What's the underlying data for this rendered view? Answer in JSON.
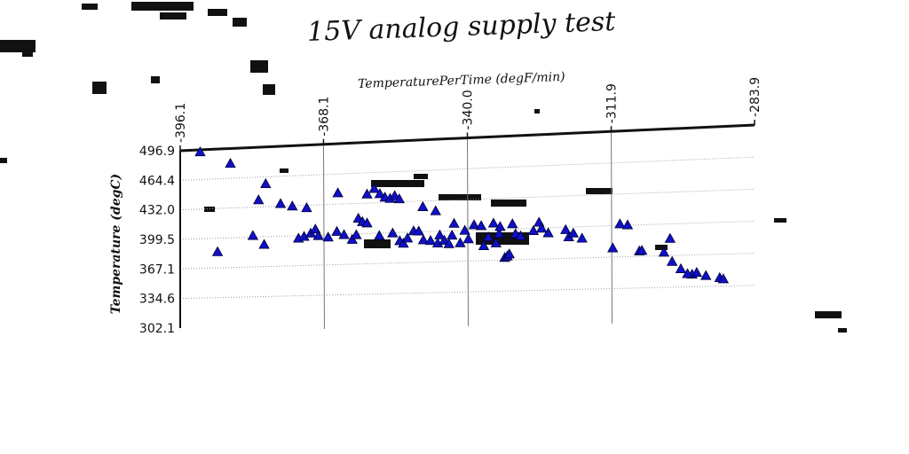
{
  "chart_data": {
    "type": "scatter",
    "title": "15V analog supply test",
    "xlabel": "TemperaturePerTime (degF/min)",
    "ylabel": "Temperature (degC)",
    "xlim": [
      -396.1,
      -283.9
    ],
    "ylim": [
      302.1,
      496.9
    ],
    "x_ticks": [
      "-396.1",
      "-368.1",
      "-340.0",
      "-311.9",
      "-283.9"
    ],
    "y_ticks": [
      "302.1",
      "334.6",
      "367.1",
      "399.5",
      "432.0",
      "464.4",
      "496.9"
    ],
    "x_axis_position": "top",
    "grid": true,
    "marker": "triangle",
    "marker_color": "#1010c8",
    "points": [
      [
        -392.2,
        494.6
      ],
      [
        -386.3,
        480.6
      ],
      [
        -388.8,
        384.7
      ],
      [
        -379.4,
        457.0
      ],
      [
        -380.8,
        439.7
      ],
      [
        -379.7,
        391.1
      ],
      [
        -381.9,
        401.2
      ],
      [
        -376.5,
        434.7
      ],
      [
        -374.2,
        431.7
      ],
      [
        -371.4,
        429.3
      ],
      [
        -373.0,
        396.7
      ],
      [
        -371.9,
        398.4
      ],
      [
        -370.6,
        401.8
      ],
      [
        -369.7,
        405.9
      ],
      [
        -369.1,
        398.8
      ],
      [
        -367.2,
        396.9
      ],
      [
        -365.5,
        402.7
      ],
      [
        -364.1,
        399.0
      ],
      [
        -362.5,
        393.6
      ],
      [
        -365.3,
        444.0
      ],
      [
        -361.7,
        398.5
      ],
      [
        -361.3,
        416.1
      ],
      [
        -360.5,
        412.2
      ],
      [
        -359.6,
        410.7
      ],
      [
        -359.6,
        441.6
      ],
      [
        -358.2,
        447.2
      ],
      [
        -357.1,
        441.4
      ],
      [
        -356.1,
        437.5
      ],
      [
        -355.1,
        436.1
      ],
      [
        -354.2,
        438.8
      ],
      [
        -353.3,
        435.2
      ],
      [
        -357.2,
        396.8
      ],
      [
        -354.6,
        399.1
      ],
      [
        -353.2,
        390.6
      ],
      [
        -352.5,
        387.8
      ],
      [
        -351.7,
        393.2
      ],
      [
        -350.5,
        400.6
      ],
      [
        -348.6,
        390.8
      ],
      [
        -349.5,
        400.2
      ],
      [
        -347.2,
        389.9
      ],
      [
        -345.8,
        386.9
      ],
      [
        -348.7,
        426.0
      ],
      [
        -346.2,
        421.1
      ],
      [
        -345.4,
        395.4
      ],
      [
        -344.5,
        389.7
      ],
      [
        -343.6,
        385.9
      ],
      [
        -343.0,
        394.8
      ],
      [
        -341.4,
        386.5
      ],
      [
        -340.5,
        399.5
      ],
      [
        -339.8,
        390.4
      ],
      [
        -342.6,
        407.2
      ],
      [
        -338.7,
        405.1
      ],
      [
        -337.3,
        403.9
      ],
      [
        -336.8,
        382.7
      ],
      [
        -335.9,
        391.8
      ],
      [
        -334.9,
        406.1
      ],
      [
        -333.8,
        395.1
      ],
      [
        -334.4,
        385.2
      ],
      [
        -332.7,
        369.7
      ],
      [
        -332.2,
        371.2
      ],
      [
        -331.8,
        373.3
      ],
      [
        -333.6,
        402.3
      ],
      [
        -331.2,
        404.8
      ],
      [
        -330.6,
        394.3
      ],
      [
        -329.6,
        391.9
      ],
      [
        -327.1,
        396.9
      ],
      [
        -326.0,
        405.5
      ],
      [
        -325.5,
        399.2
      ],
      [
        -324.2,
        394.1
      ],
      [
        -320.8,
        396.9
      ],
      [
        -320.2,
        389.3
      ],
      [
        -319.3,
        393.1
      ],
      [
        -317.6,
        387.5
      ],
      [
        -311.6,
        376.5
      ],
      [
        -310.2,
        401.1
      ],
      [
        -308.7,
        399.8
      ],
      [
        -306.4,
        372.6
      ],
      [
        -305.9,
        373.1
      ],
      [
        -300.4,
        384.6
      ],
      [
        -301.6,
        370.6
      ],
      [
        -300.0,
        360.9
      ],
      [
        -298.3,
        353.2
      ],
      [
        -296.1,
        347.3
      ],
      [
        -295.2,
        349.1
      ],
      [
        -293.4,
        345.7
      ],
      [
        -290.7,
        343.2
      ],
      [
        -290.0,
        341.8
      ],
      [
        -297.0,
        348.0
      ]
    ]
  }
}
